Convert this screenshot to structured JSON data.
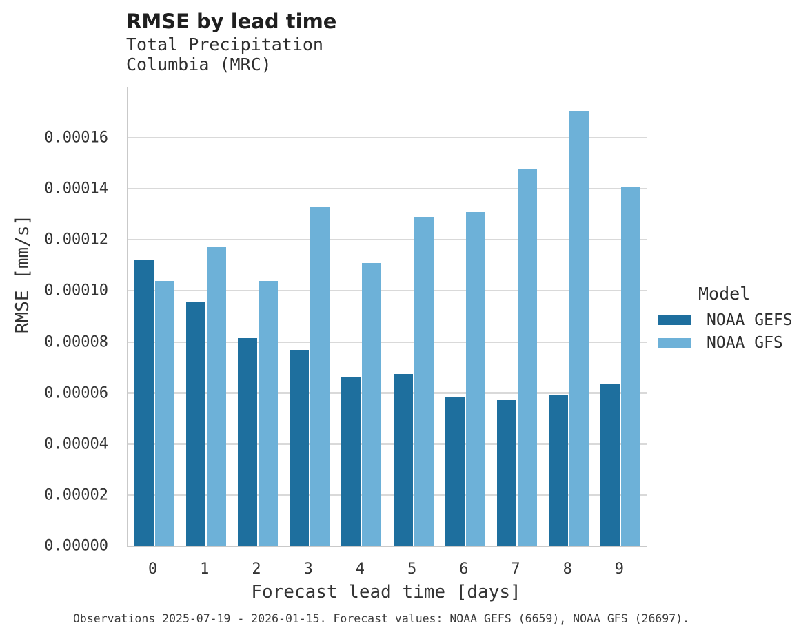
{
  "title": "RMSE by lead time",
  "subtitle_lines": [
    "Total Precipitation",
    "Columbia (MRC)"
  ],
  "caption": "Observations 2025-07-19 - 2026-01-15. Forecast values: NOAA GEFS (6659), NOAA GFS (26697).",
  "legend": {
    "title": "Model",
    "entries": [
      {
        "label": "NOAA GEFS",
        "color": "#1e6f9e"
      },
      {
        "label": "NOAA GFS",
        "color": "#6db1d8"
      }
    ]
  },
  "colors": {
    "background": "#ffffff",
    "gridline": "#d9d9d9",
    "spine": "#c9c9c9",
    "series_dark": "#1e6f9e",
    "series_light": "#6db1d8",
    "text": "#333333"
  },
  "chart_data": {
    "type": "bar",
    "title": "RMSE by lead time",
    "subtitle": "Total Precipitation Columbia (MRC)",
    "xlabel": "Forecast lead time [days]",
    "ylabel": "RMSE [mm/s]",
    "categories": [
      "0",
      "1",
      "2",
      "3",
      "4",
      "5",
      "6",
      "7",
      "8",
      "9"
    ],
    "series": [
      {
        "name": "NOAA GEFS",
        "color": "#1e6f9e",
        "values": [
          0.000112,
          9.55e-05,
          8.15e-05,
          7.7e-05,
          6.63e-05,
          6.75e-05,
          5.83e-05,
          5.72e-05,
          5.92e-05,
          6.38e-05
        ]
      },
      {
        "name": "NOAA GFS",
        "color": "#6db1d8",
        "values": [
          0.000104,
          0.000117,
          0.000104,
          0.000133,
          0.000111,
          0.000129,
          0.000131,
          0.000148,
          0.0001705,
          0.000141
        ]
      }
    ],
    "ylim": [
      0,
      0.00018
    ],
    "yticks": [
      0,
      2e-05,
      4e-05,
      6e-05,
      8e-05,
      0.0001,
      0.00012,
      0.00014,
      0.00016
    ],
    "ytick_labels": [
      "0.00000",
      "0.00002",
      "0.00004",
      "0.00006",
      "0.00008",
      "0.00010",
      "0.00012",
      "0.00014",
      "0.00016"
    ],
    "grid": true,
    "legend_position": "right",
    "bar_grouping": "grouped"
  }
}
